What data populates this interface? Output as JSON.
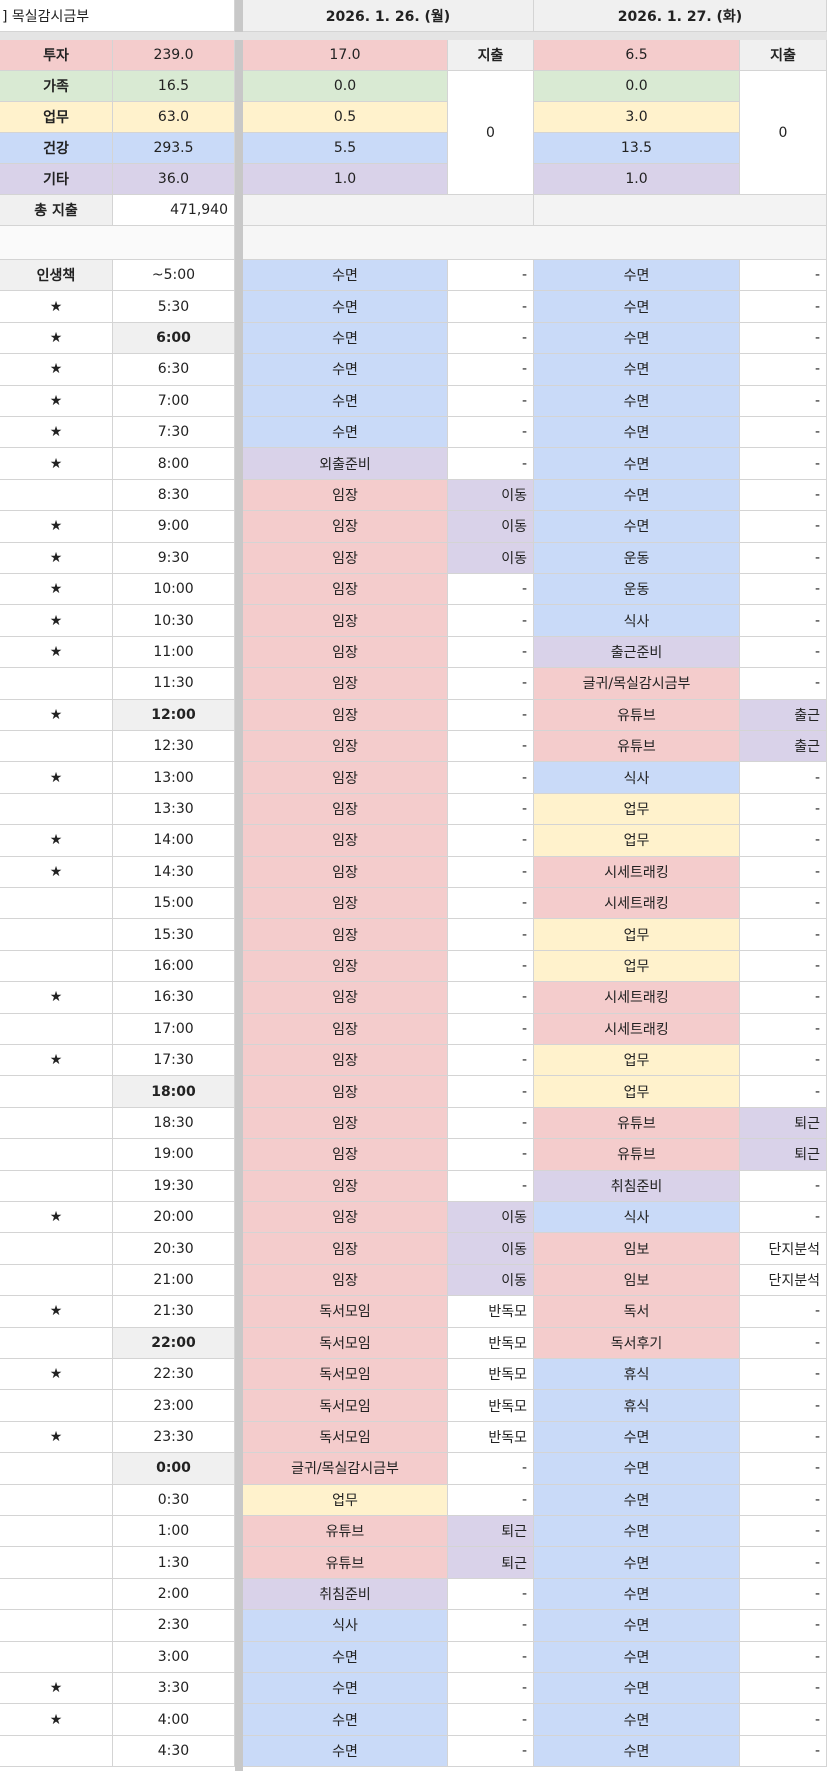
{
  "title": "] 목실감시금부",
  "days": [
    {
      "date": "2026. 1. 26. (월)",
      "expense_label": "지출",
      "expense": "0",
      "summary": [
        "17.0",
        "0.0",
        "0.5",
        "5.5",
        "1.0"
      ]
    },
    {
      "date": "2026. 1. 27. (화)",
      "expense_label": "지출",
      "expense": "0",
      "summary": [
        "6.5",
        "0.0",
        "3.0",
        "13.5",
        "1.0"
      ]
    }
  ],
  "categories": [
    {
      "label": "투자",
      "total": "239.0",
      "color": "r"
    },
    {
      "label": "가족",
      "total": "16.5",
      "color": "g"
    },
    {
      "label": "업무",
      "total": "63.0",
      "color": "y"
    },
    {
      "label": "건강",
      "total": "293.5",
      "color": "b"
    },
    {
      "label": "기타",
      "total": "36.0",
      "color": "p"
    }
  ],
  "total_expense": {
    "label": "총 지출",
    "value": "471,940"
  },
  "schedule_header": "인생책",
  "colors": {
    "r": "#f4cccc",
    "g": "#d9ead3",
    "y": "#fff2cc",
    "b": "#c9daf8",
    "p": "#d9d2e9",
    "w": "#ffffff"
  },
  "rows": [
    {
      "s": "",
      "t": "~5:00",
      "a": "수면",
      "ac": "b",
      "as": "-",
      "asc": "w",
      "c": "수면",
      "cc": "b",
      "cs": "-",
      "csc": "w"
    },
    {
      "s": "★",
      "t": "5:30",
      "a": "수면",
      "ac": "b",
      "as": "-",
      "asc": "w",
      "c": "수면",
      "cc": "b",
      "cs": "-",
      "csc": "w"
    },
    {
      "s": "★",
      "t": "6:00",
      "bold": true,
      "a": "수면",
      "ac": "b",
      "as": "-",
      "asc": "w",
      "c": "수면",
      "cc": "b",
      "cs": "-",
      "csc": "w"
    },
    {
      "s": "★",
      "t": "6:30",
      "a": "수면",
      "ac": "b",
      "as": "-",
      "asc": "w",
      "c": "수면",
      "cc": "b",
      "cs": "-",
      "csc": "w"
    },
    {
      "s": "★",
      "t": "7:00",
      "a": "수면",
      "ac": "b",
      "as": "-",
      "asc": "w",
      "c": "수면",
      "cc": "b",
      "cs": "-",
      "csc": "w"
    },
    {
      "s": "★",
      "t": "7:30",
      "a": "수면",
      "ac": "b",
      "as": "-",
      "asc": "w",
      "c": "수면",
      "cc": "b",
      "cs": "-",
      "csc": "w"
    },
    {
      "s": "★",
      "t": "8:00",
      "a": "외출준비",
      "ac": "p",
      "as": "-",
      "asc": "w",
      "c": "수면",
      "cc": "b",
      "cs": "-",
      "csc": "w"
    },
    {
      "s": "",
      "t": "8:30",
      "a": "임장",
      "ac": "r",
      "as": "이동",
      "asc": "p",
      "c": "수면",
      "cc": "b",
      "cs": "-",
      "csc": "w"
    },
    {
      "s": "★",
      "t": "9:00",
      "a": "임장",
      "ac": "r",
      "as": "이동",
      "asc": "p",
      "c": "수면",
      "cc": "b",
      "cs": "-",
      "csc": "w"
    },
    {
      "s": "★",
      "t": "9:30",
      "a": "임장",
      "ac": "r",
      "as": "이동",
      "asc": "p",
      "c": "운동",
      "cc": "b",
      "cs": "-",
      "csc": "w"
    },
    {
      "s": "★",
      "t": "10:00",
      "a": "임장",
      "ac": "r",
      "as": "-",
      "asc": "w",
      "c": "운동",
      "cc": "b",
      "cs": "-",
      "csc": "w"
    },
    {
      "s": "★",
      "t": "10:30",
      "a": "임장",
      "ac": "r",
      "as": "-",
      "asc": "w",
      "c": "식사",
      "cc": "b",
      "cs": "-",
      "csc": "w"
    },
    {
      "s": "★",
      "t": "11:00",
      "a": "임장",
      "ac": "r",
      "as": "-",
      "asc": "w",
      "c": "출근준비",
      "cc": "p",
      "cs": "-",
      "csc": "w"
    },
    {
      "s": "",
      "t": "11:30",
      "a": "임장",
      "ac": "r",
      "as": "-",
      "asc": "w",
      "c": "글귀/목실감시금부",
      "cc": "r",
      "cs": "-",
      "csc": "w"
    },
    {
      "s": "★",
      "t": "12:00",
      "bold": true,
      "a": "임장",
      "ac": "r",
      "as": "-",
      "asc": "w",
      "c": "유튜브",
      "cc": "r",
      "cs": "출근",
      "csc": "p"
    },
    {
      "s": "",
      "t": "12:30",
      "a": "임장",
      "ac": "r",
      "as": "-",
      "asc": "w",
      "c": "유튜브",
      "cc": "r",
      "cs": "출근",
      "csc": "p"
    },
    {
      "s": "★",
      "t": "13:00",
      "a": "임장",
      "ac": "r",
      "as": "-",
      "asc": "w",
      "c": "식사",
      "cc": "b",
      "cs": "-",
      "csc": "w"
    },
    {
      "s": "",
      "t": "13:30",
      "a": "임장",
      "ac": "r",
      "as": "-",
      "asc": "w",
      "c": "업무",
      "cc": "y",
      "cs": "-",
      "csc": "w"
    },
    {
      "s": "★",
      "t": "14:00",
      "a": "임장",
      "ac": "r",
      "as": "-",
      "asc": "w",
      "c": "업무",
      "cc": "y",
      "cs": "-",
      "csc": "w"
    },
    {
      "s": "★",
      "t": "14:30",
      "a": "임장",
      "ac": "r",
      "as": "-",
      "asc": "w",
      "c": "시세트래킹",
      "cc": "r",
      "cs": "-",
      "csc": "w"
    },
    {
      "s": "",
      "t": "15:00",
      "a": "임장",
      "ac": "r",
      "as": "-",
      "asc": "w",
      "c": "시세트래킹",
      "cc": "r",
      "cs": "-",
      "csc": "w"
    },
    {
      "s": "",
      "t": "15:30",
      "a": "임장",
      "ac": "r",
      "as": "-",
      "asc": "w",
      "c": "업무",
      "cc": "y",
      "cs": "-",
      "csc": "w"
    },
    {
      "s": "",
      "t": "16:00",
      "a": "임장",
      "ac": "r",
      "as": "-",
      "asc": "w",
      "c": "업무",
      "cc": "y",
      "cs": "-",
      "csc": "w"
    },
    {
      "s": "★",
      "t": "16:30",
      "a": "임장",
      "ac": "r",
      "as": "-",
      "asc": "w",
      "c": "시세트래킹",
      "cc": "r",
      "cs": "-",
      "csc": "w"
    },
    {
      "s": "",
      "t": "17:00",
      "a": "임장",
      "ac": "r",
      "as": "-",
      "asc": "w",
      "c": "시세트래킹",
      "cc": "r",
      "cs": "-",
      "csc": "w"
    },
    {
      "s": "★",
      "t": "17:30",
      "a": "임장",
      "ac": "r",
      "as": "-",
      "asc": "w",
      "c": "업무",
      "cc": "y",
      "cs": "-",
      "csc": "w"
    },
    {
      "s": "",
      "t": "18:00",
      "bold": true,
      "a": "임장",
      "ac": "r",
      "as": "-",
      "asc": "w",
      "c": "업무",
      "cc": "y",
      "cs": "-",
      "csc": "w"
    },
    {
      "s": "",
      "t": "18:30",
      "a": "임장",
      "ac": "r",
      "as": "-",
      "asc": "w",
      "c": "유튜브",
      "cc": "r",
      "cs": "퇴근",
      "csc": "p"
    },
    {
      "s": "",
      "t": "19:00",
      "a": "임장",
      "ac": "r",
      "as": "-",
      "asc": "w",
      "c": "유튜브",
      "cc": "r",
      "cs": "퇴근",
      "csc": "p"
    },
    {
      "s": "",
      "t": "19:30",
      "a": "임장",
      "ac": "r",
      "as": "-",
      "asc": "w",
      "c": "취침준비",
      "cc": "p",
      "cs": "-",
      "csc": "w"
    },
    {
      "s": "★",
      "t": "20:00",
      "a": "임장",
      "ac": "r",
      "as": "이동",
      "asc": "p",
      "c": "식사",
      "cc": "b",
      "cs": "-",
      "csc": "w"
    },
    {
      "s": "",
      "t": "20:30",
      "a": "임장",
      "ac": "r",
      "as": "이동",
      "asc": "p",
      "c": "임보",
      "cc": "r",
      "cs": "단지분석",
      "csc": "w"
    },
    {
      "s": "",
      "t": "21:00",
      "a": "임장",
      "ac": "r",
      "as": "이동",
      "asc": "p",
      "c": "임보",
      "cc": "r",
      "cs": "단지분석",
      "csc": "w"
    },
    {
      "s": "★",
      "t": "21:30",
      "a": "독서모임",
      "ac": "r",
      "as": "반독모",
      "asc": "w",
      "c": "독서",
      "cc": "r",
      "cs": "-",
      "csc": "w"
    },
    {
      "s": "",
      "t": "22:00",
      "bold": true,
      "a": "독서모임",
      "ac": "r",
      "as": "반독모",
      "asc": "w",
      "c": "독서후기",
      "cc": "r",
      "cs": "-",
      "csc": "w"
    },
    {
      "s": "★",
      "t": "22:30",
      "a": "독서모임",
      "ac": "r",
      "as": "반독모",
      "asc": "w",
      "c": "휴식",
      "cc": "b",
      "cs": "-",
      "csc": "w"
    },
    {
      "s": "",
      "t": "23:00",
      "a": "독서모임",
      "ac": "r",
      "as": "반독모",
      "asc": "w",
      "c": "휴식",
      "cc": "b",
      "cs": "-",
      "csc": "w"
    },
    {
      "s": "★",
      "t": "23:30",
      "a": "독서모임",
      "ac": "r",
      "as": "반독모",
      "asc": "w",
      "c": "수면",
      "cc": "b",
      "cs": "-",
      "csc": "w"
    },
    {
      "s": "",
      "t": "0:00",
      "bold": true,
      "a": "글귀/목실감시금부",
      "ac": "r",
      "as": "-",
      "asc": "w",
      "c": "수면",
      "cc": "b",
      "cs": "-",
      "csc": "w"
    },
    {
      "s": "",
      "t": "0:30",
      "a": "업무",
      "ac": "y",
      "as": "-",
      "asc": "w",
      "c": "수면",
      "cc": "b",
      "cs": "-",
      "csc": "w"
    },
    {
      "s": "",
      "t": "1:00",
      "a": "유튜브",
      "ac": "r",
      "as": "퇴근",
      "asc": "p",
      "c": "수면",
      "cc": "b",
      "cs": "-",
      "csc": "w"
    },
    {
      "s": "",
      "t": "1:30",
      "a": "유튜브",
      "ac": "r",
      "as": "퇴근",
      "asc": "p",
      "c": "수면",
      "cc": "b",
      "cs": "-",
      "csc": "w"
    },
    {
      "s": "",
      "t": "2:00",
      "a": "취침준비",
      "ac": "p",
      "as": "-",
      "asc": "w",
      "c": "수면",
      "cc": "b",
      "cs": "-",
      "csc": "w"
    },
    {
      "s": "",
      "t": "2:30",
      "a": "식사",
      "ac": "b",
      "as": "-",
      "asc": "w",
      "c": "수면",
      "cc": "b",
      "cs": "-",
      "csc": "w"
    },
    {
      "s": "",
      "t": "3:00",
      "a": "수면",
      "ac": "b",
      "as": "-",
      "asc": "w",
      "c": "수면",
      "cc": "b",
      "cs": "-",
      "csc": "w"
    },
    {
      "s": "★",
      "t": "3:30",
      "a": "수면",
      "ac": "b",
      "as": "-",
      "asc": "w",
      "c": "수면",
      "cc": "b",
      "cs": "-",
      "csc": "w"
    },
    {
      "s": "★",
      "t": "4:00",
      "a": "수면",
      "ac": "b",
      "as": "-",
      "asc": "w",
      "c": "수면",
      "cc": "b",
      "cs": "-",
      "csc": "w"
    },
    {
      "s": "",
      "t": "4:30",
      "a": "수면",
      "ac": "b",
      "as": "-",
      "asc": "w",
      "c": "수면",
      "cc": "b",
      "cs": "-",
      "csc": "w"
    }
  ]
}
